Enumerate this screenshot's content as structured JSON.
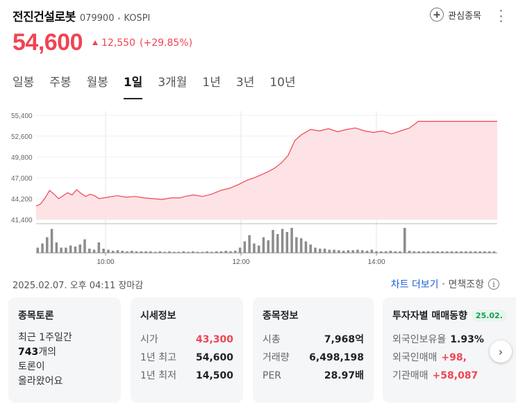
{
  "header": {
    "name": "전진건설로봇",
    "code": "079900",
    "separator": "•",
    "market": "KOSPI",
    "watch_label": "관심종목"
  },
  "price": {
    "current": "54,600",
    "change": "12,550",
    "rate": "(+29.85%)"
  },
  "tabs": [
    {
      "label": "일봉"
    },
    {
      "label": "주봉"
    },
    {
      "label": "월봉"
    },
    {
      "label": "1일",
      "active": true
    },
    {
      "label": "3개월"
    },
    {
      "label": "1년"
    },
    {
      "label": "3년"
    },
    {
      "label": "10년"
    }
  ],
  "chart_data": {
    "type": "area",
    "y_ticks": [
      "55,400",
      "52,600",
      "49,800",
      "47,000",
      "44,200",
      "41,400"
    ],
    "x_ticks": [
      "10:00",
      "12:00",
      "14:00"
    ],
    "ylim": [
      41400,
      55400
    ],
    "reference_price": 42050,
    "colors": {
      "line": "#f04452",
      "fill": "#fde3e5",
      "volume": "#8c8c8c"
    },
    "price_points": [
      [
        0,
        43200
      ],
      [
        0.02,
        43500
      ],
      [
        0.04,
        44300
      ],
      [
        0.06,
        45300
      ],
      [
        0.08,
        44800
      ],
      [
        0.1,
        44200
      ],
      [
        0.12,
        44600
      ],
      [
        0.14,
        45000
      ],
      [
        0.16,
        44700
      ],
      [
        0.18,
        45400
      ],
      [
        0.2,
        44900
      ],
      [
        0.22,
        44500
      ],
      [
        0.24,
        44800
      ],
      [
        0.26,
        44600
      ],
      [
        0.28,
        44200
      ],
      [
        0.32,
        44400
      ],
      [
        0.36,
        44600
      ],
      [
        0.4,
        44400
      ],
      [
        0.44,
        44500
      ],
      [
        0.48,
        44300
      ],
      [
        0.52,
        44200
      ],
      [
        0.56,
        44100
      ],
      [
        0.6,
        44300
      ],
      [
        0.64,
        44300
      ],
      [
        0.66,
        44500
      ],
      [
        0.7,
        44700
      ],
      [
        0.74,
        44500
      ],
      [
        0.78,
        44800
      ],
      [
        0.82,
        45300
      ],
      [
        0.86,
        45600
      ],
      [
        0.9,
        46100
      ],
      [
        0.94,
        46700
      ],
      [
        0.97,
        47000
      ],
      [
        1.0,
        47400
      ],
      [
        1.03,
        47800
      ],
      [
        1.06,
        48300
      ],
      [
        1.09,
        49000
      ],
      [
        1.12,
        50000
      ],
      [
        1.15,
        52000
      ],
      [
        1.18,
        52800
      ],
      [
        1.22,
        53500
      ],
      [
        1.26,
        53300
      ],
      [
        1.3,
        53600
      ],
      [
        1.34,
        53200
      ],
      [
        1.38,
        53500
      ],
      [
        1.42,
        53700
      ],
      [
        1.46,
        53300
      ],
      [
        1.5,
        53100
      ],
      [
        1.54,
        53300
      ],
      [
        1.58,
        52900
      ],
      [
        1.62,
        53300
      ],
      [
        1.66,
        53700
      ],
      [
        1.7,
        54600
      ],
      [
        1.74,
        54600
      ],
      [
        1.8,
        54600
      ],
      [
        1.86,
        54600
      ],
      [
        1.92,
        54600
      ],
      [
        2.05,
        54600
      ]
    ],
    "volume_bars": [
      10,
      18,
      30,
      46,
      20,
      10,
      10,
      14,
      12,
      16,
      26,
      8,
      6,
      20,
      8,
      6,
      4,
      5,
      4,
      3,
      4,
      3,
      3,
      3,
      3,
      2,
      3,
      2,
      3,
      2,
      2,
      3,
      2,
      3,
      2,
      2,
      3,
      2,
      3,
      3,
      4,
      3,
      4,
      10,
      22,
      34,
      18,
      14,
      30,
      24,
      44,
      36,
      46,
      40,
      48,
      30,
      28,
      22,
      16,
      10,
      8,
      8,
      6,
      6,
      5,
      4,
      5,
      5,
      6,
      5,
      4,
      6,
      3,
      3,
      3,
      4,
      3,
      3,
      48,
      4,
      3,
      3,
      3,
      3,
      3,
      3,
      3,
      3,
      3,
      3,
      3,
      3,
      3,
      3,
      3,
      3,
      3,
      3
    ]
  },
  "status": {
    "timestamp": "2025.02.07. 오후 04:11 장마감"
  },
  "links": {
    "chart_more": "차트 더보기",
    "separator": "•",
    "disclaimer": "면책조항",
    "info_glyph": "i"
  },
  "cards": {
    "forum": {
      "title": "종목토론",
      "line1": "최근 1주일간",
      "count": "743",
      "count_suffix": "개의",
      "line3": "토론이",
      "line4": "올라왔어요"
    },
    "market_info": {
      "title": "시세정보",
      "rows": [
        {
          "label": "시가",
          "value": "43,300"
        },
        {
          "label": "1년 최고",
          "value": "54,600"
        },
        {
          "label": "1년 최저",
          "value": "14,500"
        }
      ]
    },
    "stock_info": {
      "title": "종목정보",
      "rows": [
        {
          "label": "시총",
          "value": "7,968억"
        },
        {
          "label": "거래량",
          "value": "6,498,198"
        },
        {
          "label": "PER",
          "value": "28.97배"
        }
      ]
    },
    "investor": {
      "title": "투자자별 매매동향",
      "badge": "25.02.",
      "rows": [
        {
          "label": "외국인보유율",
          "value": "1.93%"
        },
        {
          "label": "외국인매매",
          "value": "+98,"
        },
        {
          "label": "기관매매",
          "value": "+58,087"
        }
      ]
    }
  },
  "next_glyph": "›"
}
